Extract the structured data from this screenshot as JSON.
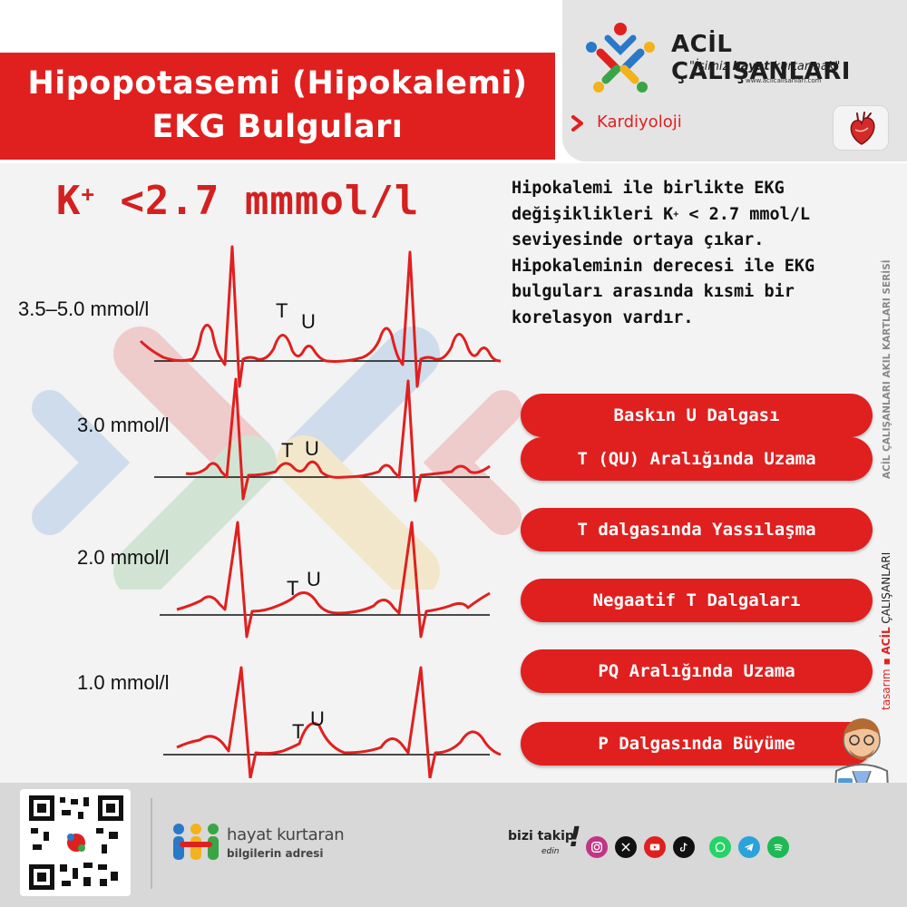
{
  "header": {
    "title_line1": "Hipopotasemi (Hipokalemi)",
    "title_line2": "EKG Bulguları"
  },
  "brand": {
    "logo": "acil-calisanlari-logo-icon",
    "name": "ACİL ÇALIŞANLARI",
    "slogan_pre": "\"İşimiz ",
    "slogan_bold": "hayat",
    "slogan_post": " kurtarmak\"",
    "url": "www.acilcalisanlari.com"
  },
  "category": {
    "chevron_icon": "chevron-right-icon",
    "label": "Kardiyoloji",
    "icon": "heart-icon"
  },
  "threshold": {
    "ion": "K",
    "charge": "+",
    "value": " <2.7 mmmol/l"
  },
  "intro": {
    "part1": "Hipokalemi ile birlikte EKG değişiklikleri K",
    "charge": "+",
    "part2": " < 2.7 mmol/L seviyesinde ortaya çıkar. Hipokaleminin derecesi ile EKG bulguları arasında kısmi bir korelasyon vardır."
  },
  "ecg_strips": [
    {
      "level": "3.5–5.0 mmol/l",
      "t_label": "T",
      "u_label": "U"
    },
    {
      "level": "3.0 mmol/l",
      "t_label": "T",
      "u_label": "U"
    },
    {
      "level": "2.0 mmol/l",
      "t_label": "T",
      "u_label": "U"
    },
    {
      "level": "1.0 mmol/l",
      "t_label": "T",
      "u_label": "U"
    }
  ],
  "findings": [
    "Baskın U Dalgası",
    "T (QU) Aralığında Uzama",
    "T dalgasında Yassılaşma",
    "Negaatif T Dalgaları",
    "PQ Aralığında Uzama",
    "P Dalgasında Büyüme"
  ],
  "side": {
    "series": "ACİL ÇALIŞANLARI AKIL KARTLARI SERİSİ",
    "design_prefix": "tasarım",
    "design_brand_red": "ACİL",
    "design_brand_rest": " ÇALIŞANLARI"
  },
  "colors": {
    "accent_red": "#e0201f",
    "ecg_trace": "#e0201f"
  },
  "footer": {
    "qr_icon": "qr-code-icon",
    "hk_logo": "hayat-kurtaran-people-icon",
    "hk_line1": "hayat kurtaran",
    "hk_line2": "bilgilerin adresi",
    "follow_line1": "bizi takip",
    "follow_line2": "edin",
    "follow_bang": "!",
    "social_icons": [
      "instagram-icon",
      "x-icon",
      "youtube-icon",
      "tiktok-icon",
      "whatsapp-icon",
      "telegram-icon",
      "spotify-icon"
    ]
  }
}
